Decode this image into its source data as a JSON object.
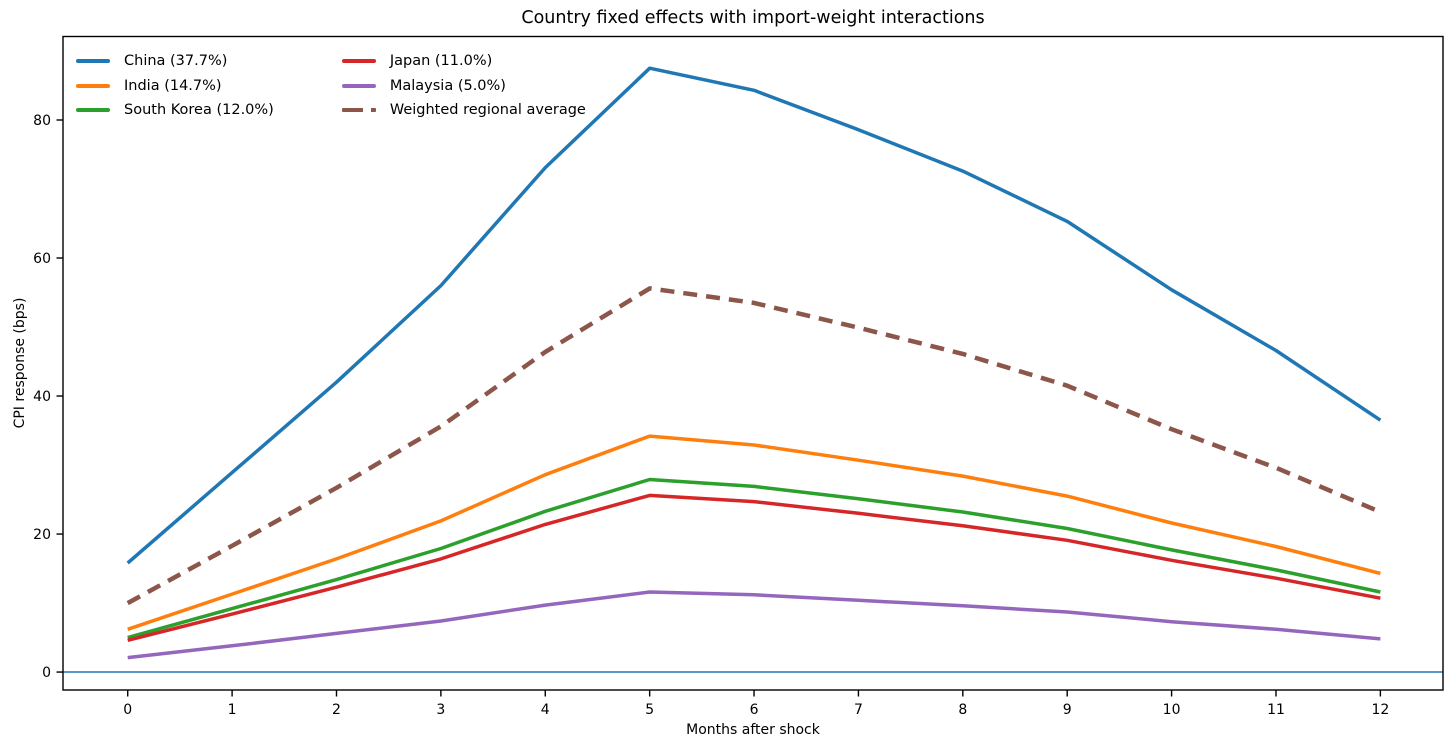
{
  "chart_data": {
    "type": "line",
    "title": "Country fixed effects with import-weight interactions",
    "xlabel": "Months after shock",
    "ylabel": "CPI response (bps)",
    "x": [
      0,
      1,
      2,
      3,
      4,
      5,
      6,
      7,
      8,
      9,
      10,
      11,
      12
    ],
    "x_tick_labels": [
      "0",
      "1",
      "2",
      "3",
      "4",
      "5",
      "6",
      "7",
      "8",
      "9",
      "10",
      "11",
      "12"
    ],
    "y_ticks": [
      0,
      20,
      40,
      60,
      80
    ],
    "y_tick_labels": [
      "0",
      "20",
      "40",
      "60",
      "80"
    ],
    "xlim": [
      -0.62,
      12.6
    ],
    "ylim": [
      -2.6,
      92.1
    ],
    "grid": false,
    "legend_position": "upper-left",
    "legend_columns": 2,
    "zero_line": {
      "y": 0,
      "color": "#1f77b4"
    },
    "axis_color": "#000000",
    "series": [
      {
        "name": "China (37.7%)",
        "color": "#1f77b4",
        "style": "solid",
        "values": [
          15.8,
          28.9,
          42.0,
          56.0,
          73.1,
          87.5,
          84.3,
          78.6,
          72.6,
          65.3,
          55.4,
          46.6,
          36.5
        ]
      },
      {
        "name": "India (14.7%)",
        "color": "#ff7f0e",
        "style": "solid",
        "values": [
          6.2,
          11.3,
          16.4,
          21.9,
          28.6,
          34.2,
          32.9,
          30.7,
          28.4,
          25.5,
          21.6,
          18.2,
          14.3
        ]
      },
      {
        "name": "South Korea (12.0%)",
        "color": "#2ca02c",
        "style": "solid",
        "values": [
          5.0,
          9.2,
          13.4,
          17.9,
          23.3,
          27.9,
          26.9,
          25.1,
          23.2,
          20.8,
          17.7,
          14.8,
          11.6
        ]
      },
      {
        "name": "Japan (11.0%)",
        "color": "#d62728",
        "style": "solid",
        "values": [
          4.6,
          8.4,
          12.3,
          16.4,
          21.4,
          25.6,
          24.7,
          23.0,
          21.2,
          19.1,
          16.2,
          13.6,
          10.7
        ]
      },
      {
        "name": "Malaysia (5.0%)",
        "color": "#9467bd",
        "style": "solid",
        "values": [
          2.1,
          3.8,
          5.6,
          7.4,
          9.7,
          11.6,
          11.2,
          10.4,
          9.6,
          8.7,
          7.3,
          6.2,
          4.8
        ]
      },
      {
        "name": "Weighted regional average",
        "color": "#8c564b",
        "style": "dashed",
        "values": [
          10.0,
          18.3,
          26.7,
          35.6,
          46.4,
          55.6,
          53.5,
          49.9,
          46.1,
          41.5,
          35.2,
          29.6,
          23.2
        ]
      }
    ]
  }
}
